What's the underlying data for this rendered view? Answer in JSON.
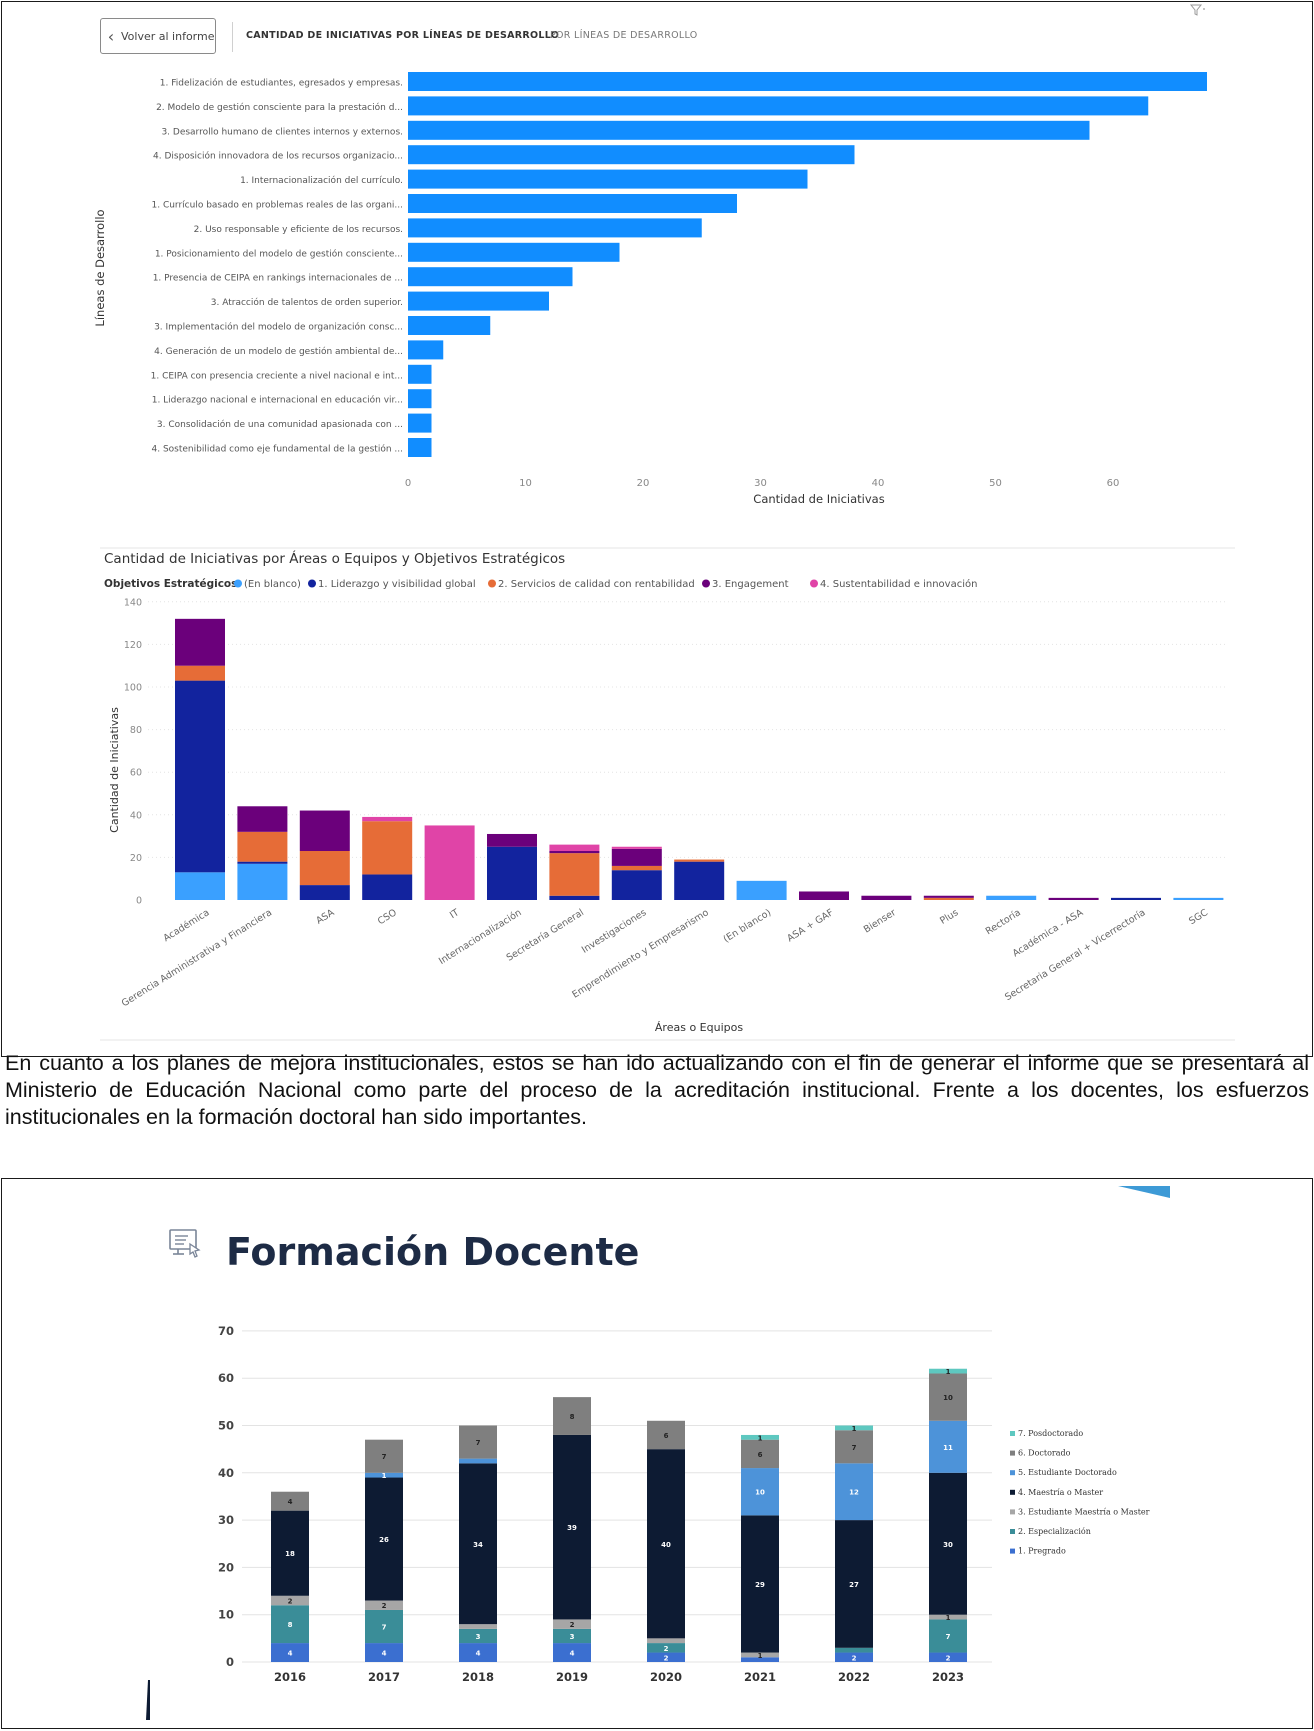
{
  "header": {
    "back_label": "Volver al informe",
    "tab_active": "CANTIDAD DE INICIATIVAS POR LÍNEAS DE DESARROLLO",
    "tab_other": "POR LÍNEAS DE DESARROLLO"
  },
  "paragraph": "En cuanto a los planes de mejora institucionales, estos se han ido actualizando con el fin de generar el informe que se presentará al Ministerio de Educación Nacional como parte del proceso de la acreditación institucional. Frente a los docentes, los esfuerzos institucionales en la formación doctoral han sido importantes.",
  "formacion": {
    "title": "Formación Docente"
  },
  "colors": {
    "bar_blue": "#118dff",
    "en_blanco": "#3aa0ff",
    "liderazgo": "#12239e",
    "servicios": "#e66c37",
    "engagement": "#6b007b",
    "sustentabilidad": "#e044a7",
    "fd_posdoctorado": "#5ec8c0",
    "fd_doctorado": "#7f7f7f",
    "fd_est_doctorado": "#4d93d9",
    "fd_maestria": "#0d1b33",
    "fd_est_maestria": "#a6a6a6",
    "fd_especializacion": "#3a8d98",
    "fd_pregrado": "#3b6fd0"
  },
  "chart_data": [
    {
      "type": "bar",
      "orientation": "horizontal",
      "xlabel": "Cantidad de Iniciativas",
      "ylabel": "Líneas de Desarrollo",
      "xlim": [
        0,
        70
      ],
      "xticks": [
        0,
        10,
        20,
        30,
        40,
        50,
        60
      ],
      "categories": [
        "1. Fidelización de estudiantes, egresados y empresas.",
        "2. Modelo de gestión consciente para la prestación d...",
        "3. Desarrollo humano de clientes internos y externos.",
        "4. Disposición innovadora de los recursos organizacio...",
        "1. Internacionalización del currículo.",
        "1. Currículo basado en problemas reales de las organi...",
        "2. Uso responsable y eficiente de los recursos.",
        "1. Posicionamiento del modelo de gestión consciente...",
        "1. Presencia de CEIPA en rankings internacionales de ...",
        "3. Atracción de talentos de orden superior.",
        "3. Implementación del modelo de organización consc...",
        "4. Generación de un modelo de gestión ambiental de...",
        "1. CEIPA con presencia creciente a nivel nacional e int...",
        "1. Liderazgo nacional e internacional en educación vir...",
        "3. Consolidación de una comunidad apasionada con ...",
        "4. Sostenibilidad como eje fundamental de la gestión ..."
      ],
      "values": [
        68,
        63,
        58,
        38,
        34,
        28,
        25,
        18,
        14,
        12,
        7,
        3,
        2,
        2,
        2,
        2
      ]
    },
    {
      "type": "bar",
      "stacked": true,
      "title": "Cantidad de Iniciativas por Áreas o Equipos y Objetivos Estratégicos",
      "legend_title": "Objetivos Estratégicos",
      "legend_position": "top-left",
      "xlabel": "Áreas o Equipos",
      "ylabel": "Cantidad de Iniciativas",
      "ylim": [
        0,
        140
      ],
      "yticks": [
        0,
        20,
        40,
        60,
        80,
        100,
        120,
        140
      ],
      "categories": [
        "Académica",
        "Gerencia Administrativa y Financiera",
        "ASA",
        "CSO",
        "IT",
        "Internacionalización",
        "Secretaría General",
        "Investigaciones",
        "Emprendimiento y Empresarismo",
        "(En blanco)",
        "ASA + GAF",
        "Bienser",
        "Plus",
        "Rectoría",
        "Académica - ASA",
        "Secretaria General + Vicerrectoría",
        "SGC"
      ],
      "series": [
        {
          "name": "(En blanco)",
          "values": [
            13,
            17,
            0,
            0,
            0,
            0,
            0,
            0,
            0,
            9,
            0,
            0,
            0,
            2,
            0,
            0,
            1
          ]
        },
        {
          "name": "1. Liderazgo y visibilidad global",
          "values": [
            90,
            1,
            7,
            12,
            0,
            25,
            2,
            14,
            18,
            0,
            0,
            0,
            0,
            0,
            0,
            1,
            0
          ]
        },
        {
          "name": "2. Servicios de calidad con rentabilidad",
          "values": [
            7,
            14,
            16,
            25,
            0,
            0,
            20,
            2,
            1,
            0,
            0,
            0,
            1,
            0,
            0,
            0,
            0
          ]
        },
        {
          "name": "3. Engagement",
          "values": [
            22,
            12,
            19,
            0,
            0,
            6,
            1,
            8,
            0,
            0,
            4,
            2,
            1,
            0,
            1,
            0,
            0
          ]
        },
        {
          "name": "4. Sustentabilidad e innovación",
          "values": [
            0,
            0,
            0,
            2,
            35,
            0,
            3,
            1,
            0,
            0,
            0,
            0,
            0,
            0,
            0,
            0,
            0
          ]
        }
      ]
    },
    {
      "type": "bar",
      "stacked": true,
      "title": "Formación Docente",
      "legend_position": "right",
      "ylim": [
        0,
        70
      ],
      "yticks": [
        0,
        10,
        20,
        30,
        40,
        50,
        60,
        70
      ],
      "categories": [
        "2016",
        "2017",
        "2018",
        "2019",
        "2020",
        "2021",
        "2022",
        "2023"
      ],
      "series": [
        {
          "name": "1. Pregrado",
          "values": [
            4,
            4,
            4,
            4,
            2,
            1,
            2,
            2
          ]
        },
        {
          "name": "2. Especialización",
          "values": [
            8,
            7,
            3,
            3,
            2,
            0,
            1,
            7
          ]
        },
        {
          "name": "3. Estudiante Maestría o Master",
          "values": [
            2,
            2,
            1,
            2,
            1,
            1,
            0,
            1
          ]
        },
        {
          "name": "4. Maestría o Master",
          "values": [
            18,
            26,
            34,
            39,
            40,
            29,
            27,
            30
          ]
        },
        {
          "name": "5. Estudiante Doctorado",
          "values": [
            0,
            1,
            1,
            0,
            0,
            10,
            12,
            11
          ]
        },
        {
          "name": "6. Doctorado",
          "values": [
            4,
            7,
            7,
            8,
            6,
            6,
            7,
            10
          ]
        },
        {
          "name": "7. Posdoctorado",
          "values": [
            0,
            0,
            0,
            0,
            0,
            1,
            1,
            1
          ]
        }
      ],
      "segment_labels": [
        [
          "4",
          "8",
          "2",
          "18",
          "",
          "4",
          ""
        ],
        [
          "4",
          "7",
          "2",
          "26",
          "1",
          "7",
          ""
        ],
        [
          "4",
          "3",
          "",
          "34",
          "",
          "7",
          ""
        ],
        [
          "4",
          "3",
          "2",
          "39",
          "",
          "8",
          ""
        ],
        [
          "2",
          "2",
          "",
          "40",
          "",
          "6",
          ""
        ],
        [
          "",
          "",
          "1",
          "29",
          "10",
          "6",
          "1"
        ],
        [
          "2",
          "",
          "",
          "27",
          "12",
          "7",
          "1"
        ],
        [
          "2",
          "7",
          "1",
          "30",
          "11",
          "10",
          "1"
        ]
      ]
    }
  ]
}
